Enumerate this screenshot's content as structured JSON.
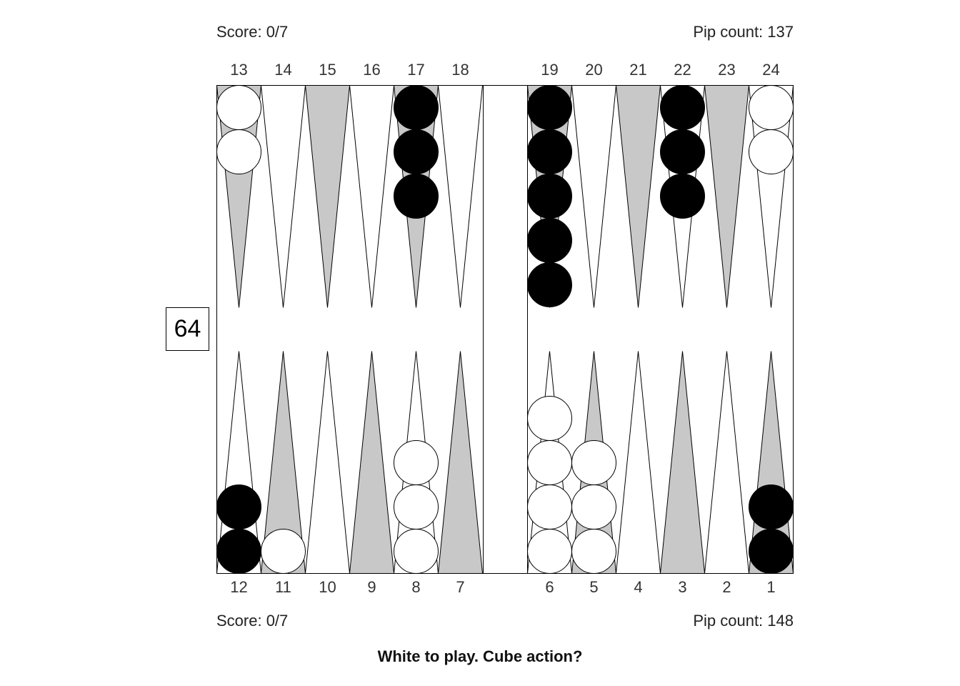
{
  "top": {
    "score": "Score: 0/7",
    "pip_count": "Pip count: 137"
  },
  "bottom": {
    "score": "Score: 0/7",
    "pip_count": "Pip count: 148"
  },
  "cube": {
    "value": "64"
  },
  "caption": "White to play. Cube action?",
  "colors": {
    "black_checker": "#000000",
    "white_checker": "#ffffff",
    "dark_point": "#c8c8c8",
    "light_point": "#ffffff",
    "board_line": "#000000"
  },
  "points": {
    "top_labels": [
      "13",
      "14",
      "15",
      "16",
      "17",
      "18",
      "19",
      "20",
      "21",
      "22",
      "23",
      "24"
    ],
    "bottom_labels": [
      "12",
      "11",
      "10",
      "9",
      "8",
      "7",
      "6",
      "5",
      "4",
      "3",
      "2",
      "1"
    ],
    "top_checkers": [
      {
        "point": "13",
        "color": "white",
        "count": 2
      },
      {
        "point": "17",
        "color": "black",
        "count": 3
      },
      {
        "point": "19",
        "color": "black",
        "count": 5
      },
      {
        "point": "22",
        "color": "black",
        "count": 3
      },
      {
        "point": "24",
        "color": "white",
        "count": 2
      }
    ],
    "bottom_checkers": [
      {
        "point": "12",
        "color": "black",
        "count": 2
      },
      {
        "point": "11",
        "color": "white",
        "count": 1
      },
      {
        "point": "8",
        "color": "white",
        "count": 3
      },
      {
        "point": "6",
        "color": "white",
        "count": 4
      },
      {
        "point": "5",
        "color": "white",
        "count": 3
      },
      {
        "point": "1",
        "color": "black",
        "count": 2
      }
    ]
  }
}
